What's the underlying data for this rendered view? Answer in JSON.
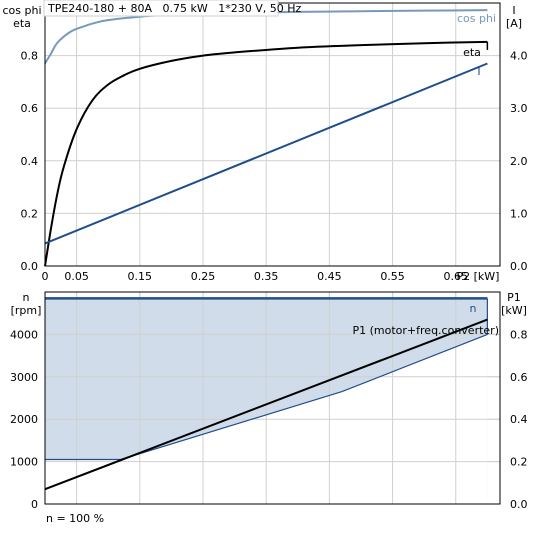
{
  "header": {
    "title": "TPE240-180 + 80A   0.75 kW   1*230 V, 50 Hz"
  },
  "footer": {
    "speed_note": "n = 100 %"
  },
  "colors": {
    "cos_phi": "#7799bb",
    "eta": "#000000",
    "current": "#1f4e8a",
    "speed_fill": "#d0dcea",
    "speed_line": "#1f4e8a",
    "grid": "#d0d0d0"
  },
  "chart_data": [
    {
      "type": "line",
      "title": "TPE240-180 + 80A   0.75 kW   1*230 V, 50 Hz",
      "xlabel": "P2 [kW]",
      "ylabel_left": [
        "cos phi",
        "eta"
      ],
      "ylabel_right": [
        "I",
        "[A]"
      ],
      "xlim": [
        0,
        0.72
      ],
      "ylim_left": [
        0,
        1.0
      ],
      "ylim_right": [
        0,
        5.0
      ],
      "x_ticks": [
        0,
        0.05,
        0.15,
        0.25,
        0.35,
        0.45,
        0.55,
        0.65
      ],
      "x_tick_labels": [
        "0",
        "0.05",
        "0.15",
        "0.25",
        "0.35",
        "0.45",
        "0.55",
        "0.65"
      ],
      "x_end_label": "P2 [kW]",
      "y_ticks_left": [
        0,
        0.2,
        0.4,
        0.6,
        0.8
      ],
      "y_tick_labels_left": [
        "0.0",
        "0.2",
        "0.4",
        "0.6",
        "0.8"
      ],
      "y_ticks_right": [
        0,
        1,
        2,
        3,
        4
      ],
      "y_tick_labels_right": [
        "0.0",
        "1.0",
        "2.0",
        "3.0",
        "4.0"
      ],
      "grid": true,
      "series": [
        {
          "name": "cos phi",
          "axis": "left",
          "x": [
            0,
            0.01,
            0.02,
            0.04,
            0.06,
            0.08,
            0.1,
            0.15,
            0.2,
            0.3,
            0.4,
            0.5,
            0.6,
            0.7
          ],
          "y": [
            0.77,
            0.81,
            0.85,
            0.89,
            0.91,
            0.925,
            0.935,
            0.948,
            0.955,
            0.962,
            0.966,
            0.969,
            0.971,
            0.973
          ]
        },
        {
          "name": "eta",
          "axis": "left",
          "x": [
            0,
            0.01,
            0.02,
            0.03,
            0.05,
            0.075,
            0.1,
            0.125,
            0.15,
            0.2,
            0.25,
            0.3,
            0.4,
            0.5,
            0.6,
            0.7
          ],
          "y": [
            0.0,
            0.15,
            0.28,
            0.38,
            0.52,
            0.63,
            0.69,
            0.725,
            0.75,
            0.78,
            0.8,
            0.812,
            0.83,
            0.84,
            0.847,
            0.852
          ]
        },
        {
          "name": "I",
          "axis": "right",
          "x": [
            0,
            0.7
          ],
          "y": [
            0.43,
            3.85
          ]
        }
      ]
    },
    {
      "type": "area",
      "ylabel_left": [
        "n",
        "[rpm]"
      ],
      "ylabel_right": [
        "P1",
        "[kW]"
      ],
      "xlim": [
        0,
        0.72
      ],
      "ylim_left": [
        0,
        5000
      ],
      "ylim_right": [
        0,
        1.0
      ],
      "y_ticks_left": [
        0,
        1000,
        2000,
        3000,
        4000
      ],
      "y_tick_labels_left": [
        "0",
        "1000",
        "2000",
        "3000",
        "4000"
      ],
      "y_ticks_right": [
        0,
        0.2,
        0.4,
        0.6,
        0.8
      ],
      "y_tick_labels_right": [
        "0.0",
        "0.2",
        "0.4",
        "0.6",
        "0.8"
      ],
      "grid": true,
      "series": [
        {
          "name": "n",
          "axis": "left",
          "x": [
            0,
            0.7
          ],
          "y": [
            4850,
            4850
          ]
        },
        {
          "name": "",
          "axis": "right",
          "x": [
            0,
            0.12,
            0.47,
            0.7
          ],
          "y": [
            0.21,
            0.21,
            0.53,
            0.8
          ]
        },
        {
          "name": "P1 (motor+freq.converter)",
          "axis": "right",
          "x": [
            0,
            0.7
          ],
          "y": [
            0.07,
            0.87
          ]
        }
      ]
    }
  ]
}
